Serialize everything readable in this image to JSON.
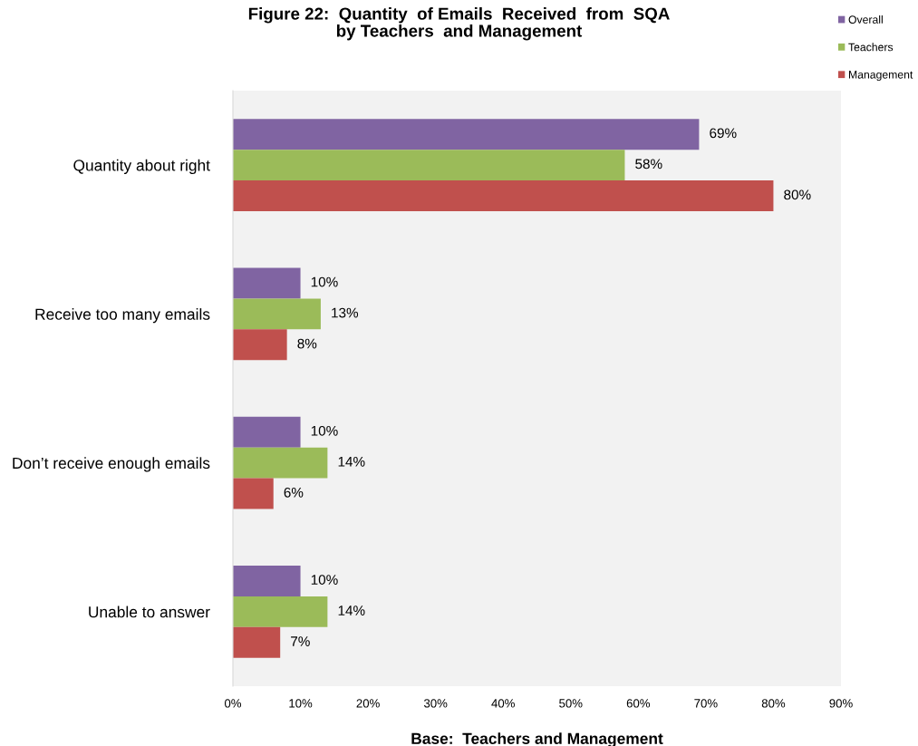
{
  "chart_data": {
    "type": "bar",
    "orientation": "horizontal",
    "title": "Figure 22:  Quantity  of Emails  Received  from  SQA\nby Teachers  and Management",
    "xlabel": "Base:  Teachers and Management",
    "categories": [
      "Quantity about right",
      "Receive too many emails",
      "Don’t receive enough emails",
      "Unable to answer"
    ],
    "series": [
      {
        "name": "Overall",
        "color": "#8064a2",
        "values": [
          69,
          10,
          10,
          10
        ],
        "value_labels": [
          "69%",
          "10%",
          "10%",
          "10%"
        ]
      },
      {
        "name": "Teachers",
        "color": "#9bbb59",
        "values": [
          58,
          13,
          14,
          14
        ],
        "value_labels": [
          "58%",
          "13%",
          "14%",
          "14%"
        ]
      },
      {
        "name": "Management",
        "color": "#c0504d",
        "values": [
          80,
          8,
          6,
          7
        ],
        "value_labels": [
          "80%",
          "8%",
          "6%",
          "7%"
        ]
      }
    ],
    "xlim": [
      0,
      90
    ],
    "xticks": [
      {
        "value": 0,
        "label": "0%"
      },
      {
        "value": 10,
        "label": "10%"
      },
      {
        "value": 20,
        "label": "20%"
      },
      {
        "value": 30,
        "label": "30%"
      },
      {
        "value": 40,
        "label": "40%"
      },
      {
        "value": 50,
        "label": "50%"
      },
      {
        "value": 60,
        "label": "60%"
      },
      {
        "value": 70,
        "label": "70%"
      },
      {
        "value": 80,
        "label": "80%"
      },
      {
        "value": 90,
        "label": "90%"
      }
    ],
    "grid": false,
    "legend": "top right"
  }
}
